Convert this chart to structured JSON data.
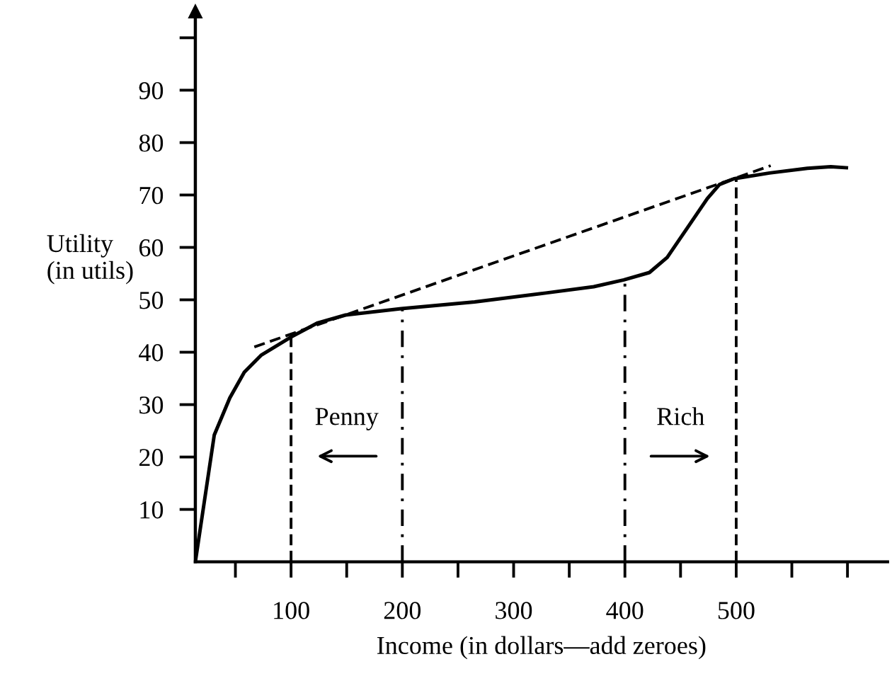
{
  "chart_data": {
    "type": "line",
    "xlabel": "Income (in dollars—add zeroes)",
    "ylabel": "Utility\n(in utils)",
    "xlim": [
      14,
      636
    ],
    "ylim": [
      0,
      105
    ],
    "xticks": [
      {
        "value": 50,
        "label": null
      },
      100,
      {
        "value": 150,
        "label": null
      },
      200,
      {
        "value": 250,
        "label": null
      },
      300,
      {
        "value": 350,
        "label": null
      },
      400,
      {
        "value": 450,
        "label": null
      },
      500,
      {
        "value": 550,
        "label": null
      },
      {
        "value": 600,
        "label": null
      }
    ],
    "yticks": [
      10,
      20,
      30,
      40,
      50,
      60,
      70,
      80,
      90,
      {
        "value": 100,
        "label": null
      }
    ],
    "grid": false,
    "legend": false,
    "marker": "none",
    "series": [
      {
        "color": "#000000",
        "line_style": "solid",
        "x": [
          14,
          31,
          45,
          58,
          73,
          100,
          124,
          149,
          199,
          265,
          329,
          372,
          399,
          422,
          438,
          457,
          474,
          485,
          498,
          530,
          564,
          585,
          599
        ],
        "values": [
          0,
          24.2,
          31.3,
          36.2,
          39.4,
          42.9,
          45.6,
          47.1,
          48.3,
          49.6,
          51.3,
          52.5,
          53.8,
          55.2,
          58.1,
          64.0,
          69.3,
          72.0,
          73.1,
          74.2,
          75.1,
          75.4,
          75.2
        ]
      },
      {
        "color": "#000000",
        "line_style": "dashed",
        "x": [
          67,
          531
        ],
        "values": [
          41.0,
          75.6
        ]
      },
      {
        "color": "#000000",
        "line_style": "dashed",
        "x": [
          100,
          100
        ],
        "values": [
          0,
          42.9
        ]
      },
      {
        "color": "#000000",
        "line_style": "dashdot",
        "x": [
          200,
          200
        ],
        "values": [
          0,
          48.3
        ]
      },
      {
        "color": "#000000",
        "line_style": "dashdot",
        "x": [
          400,
          400
        ],
        "values": [
          0,
          53.8
        ]
      },
      {
        "color": "#000000",
        "line_style": "dashed",
        "x": [
          500,
          500
        ],
        "values": [
          0,
          73.1
        ]
      }
    ],
    "annotations": [
      "Penny",
      "Rich"
    ]
  }
}
